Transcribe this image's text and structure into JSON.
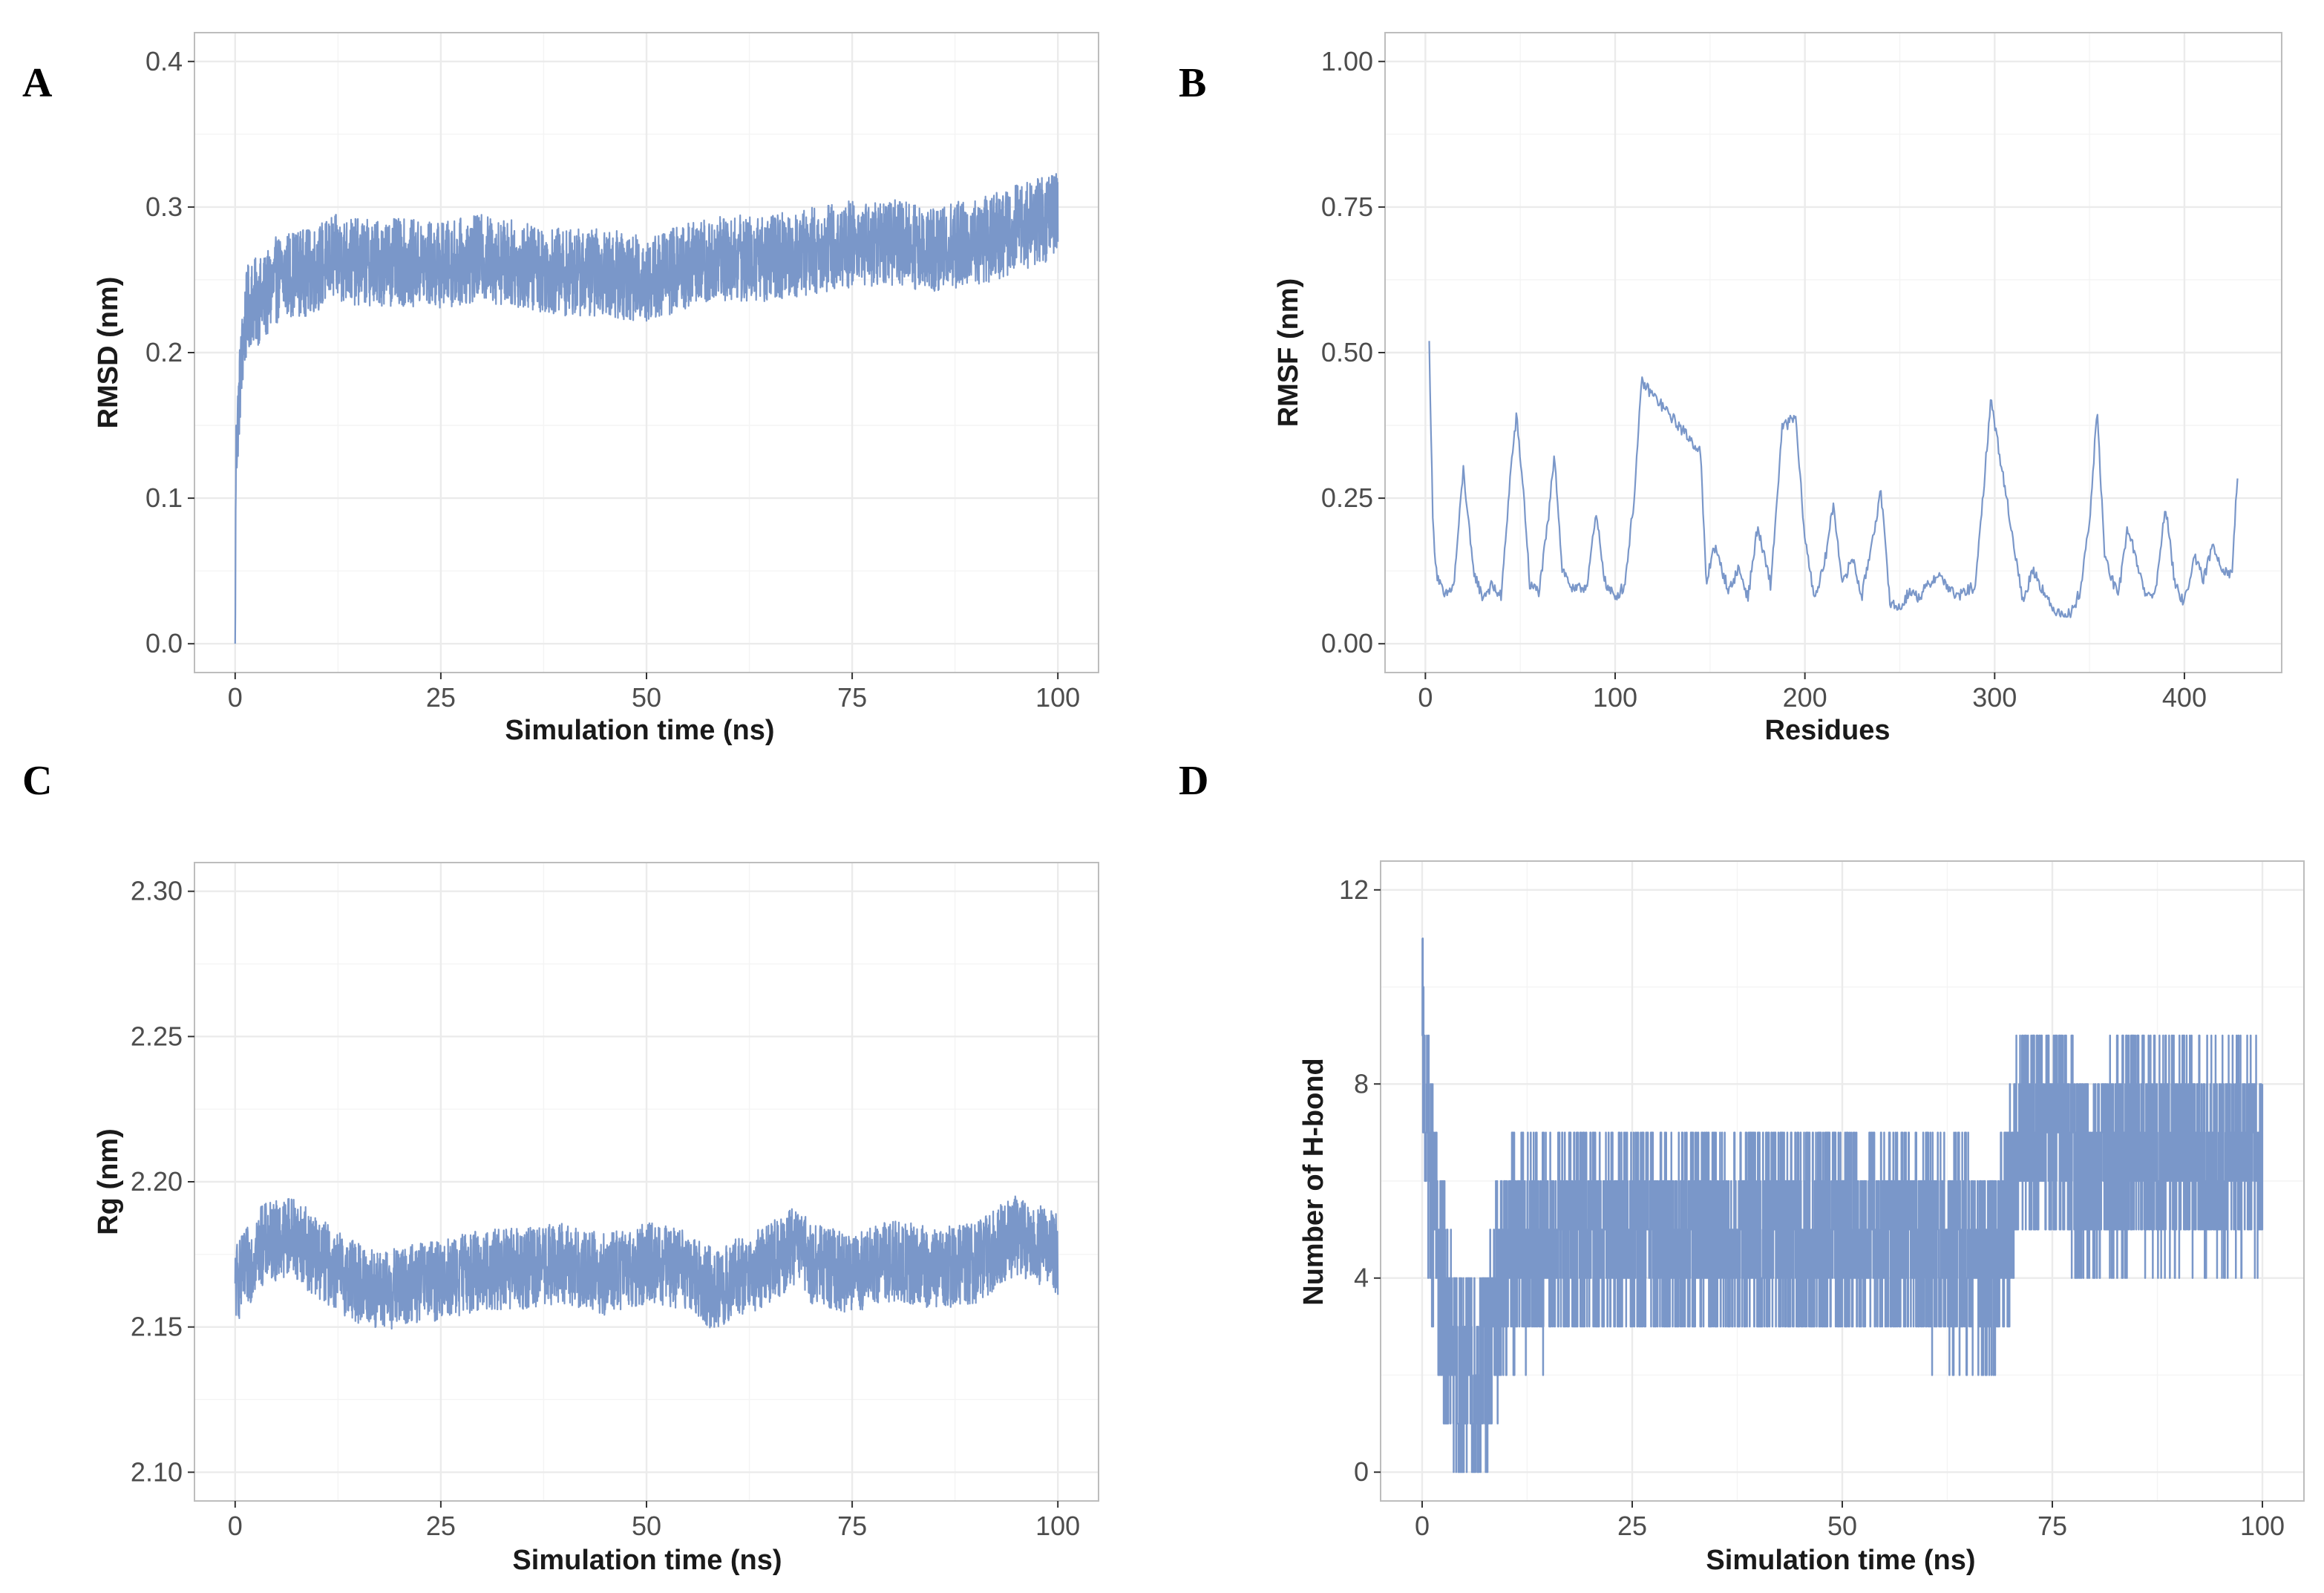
{
  "colors": {
    "series": "#7A97C9"
  },
  "chart_data": [
    {
      "panel": "A",
      "type": "line",
      "xlabel": "Simulation time (ns)",
      "ylabel": "RMSD (nm)",
      "xlim": [
        0,
        100
      ],
      "ylim": [
        0.0,
        0.4
      ],
      "xticks": [
        0,
        25,
        50,
        75,
        100
      ],
      "yticks": [
        0.0,
        0.1,
        0.2,
        0.3,
        0.4
      ],
      "ytick_labels": [
        "0.0",
        "0.1",
        "0.2",
        "0.3",
        "0.4"
      ],
      "grid": true,
      "series": [
        {
          "name": "RMSD",
          "noise": 0.03,
          "x": [
            0,
            0.1,
            0.3,
            0.6,
            1,
            1.5,
            2,
            3,
            4,
            5,
            7,
            9,
            12,
            15,
            20,
            25,
            30,
            35,
            40,
            45,
            50,
            55,
            60,
            65,
            70,
            75,
            80,
            85,
            90,
            95,
            100
          ],
          "y": [
            0.0,
            0.13,
            0.15,
            0.18,
            0.21,
            0.23,
            0.235,
            0.235,
            0.24,
            0.25,
            0.255,
            0.255,
            0.265,
            0.262,
            0.262,
            0.26,
            0.265,
            0.26,
            0.255,
            0.255,
            0.25,
            0.26,
            0.265,
            0.265,
            0.27,
            0.275,
            0.275,
            0.272,
            0.275,
            0.285,
            0.295
          ]
        }
      ]
    },
    {
      "panel": "B",
      "type": "line",
      "xlabel": "Residues",
      "ylabel": "RMSF (nm)",
      "xlim": [
        0,
        430
      ],
      "ylim": [
        0.0,
        1.0
      ],
      "xticks": [
        0,
        100,
        200,
        300,
        400
      ],
      "yticks": [
        0.0,
        0.25,
        0.5,
        0.75,
        1.0
      ],
      "ytick_labels": [
        "0.00",
        "0.25",
        "0.50",
        "0.75",
        "1.00"
      ],
      "grid": true,
      "series": [
        {
          "name": "RMSF",
          "noise": 0.02,
          "x": [
            2,
            4,
            6,
            10,
            15,
            20,
            25,
            30,
            35,
            40,
            45,
            48,
            52,
            55,
            60,
            65,
            68,
            72,
            78,
            85,
            90,
            95,
            100,
            105,
            110,
            114,
            145,
            148,
            152,
            160,
            165,
            170,
            175,
            182,
            188,
            195,
            200,
            205,
            210,
            215,
            220,
            225,
            230,
            235,
            240,
            245,
            250,
            255,
            260,
            270,
            280,
            290,
            298,
            315,
            320,
            330,
            340,
            345,
            350,
            354,
            358,
            365,
            370,
            380,
            385,
            390,
            395,
            400,
            405,
            410,
            415,
            420,
            425,
            428
          ],
          "y": [
            0.52,
            0.2,
            0.12,
            0.08,
            0.1,
            0.3,
            0.13,
            0.08,
            0.1,
            0.08,
            0.3,
            0.39,
            0.25,
            0.1,
            0.09,
            0.22,
            0.33,
            0.13,
            0.09,
            0.1,
            0.22,
            0.1,
            0.08,
            0.1,
            0.25,
            0.45,
            0.33,
            0.1,
            0.17,
            0.09,
            0.13,
            0.08,
            0.2,
            0.1,
            0.37,
            0.39,
            0.18,
            0.08,
            0.13,
            0.24,
            0.1,
            0.15,
            0.08,
            0.17,
            0.26,
            0.07,
            0.06,
            0.09,
            0.08,
            0.12,
            0.08,
            0.1,
            0.42,
            0.07,
            0.13,
            0.06,
            0.05,
            0.09,
            0.21,
            0.4,
            0.15,
            0.08,
            0.2,
            0.08,
            0.09,
            0.24,
            0.1,
            0.07,
            0.15,
            0.11,
            0.17,
            0.13,
            0.12,
            0.29
          ]
        }
      ]
    },
    {
      "panel": "C",
      "type": "line",
      "xlabel": "Simulation time (ns)",
      "ylabel": "Rg (nm)",
      "xlim": [
        0,
        100
      ],
      "ylim": [
        2.1,
        2.3
      ],
      "xticks": [
        0,
        25,
        50,
        75,
        100
      ],
      "yticks": [
        2.1,
        2.15,
        2.2,
        2.25,
        2.3
      ],
      "ytick_labels": [
        "2.10",
        "2.15",
        "2.20",
        "2.25",
        "2.30"
      ],
      "grid": true,
      "series": [
        {
          "name": "Rg",
          "noise": 0.014,
          "x": [
            0,
            1,
            3,
            5,
            7,
            9,
            12,
            15,
            18,
            22,
            25,
            30,
            35,
            40,
            45,
            50,
            55,
            58,
            62,
            65,
            68,
            70,
            75,
            80,
            85,
            90,
            95,
            98,
            100
          ],
          "y": [
            2.165,
            2.168,
            2.178,
            2.18,
            2.182,
            2.176,
            2.17,
            2.165,
            2.162,
            2.165,
            2.166,
            2.17,
            2.17,
            2.172,
            2.168,
            2.172,
            2.17,
            2.163,
            2.168,
            2.172,
            2.178,
            2.172,
            2.168,
            2.173,
            2.17,
            2.172,
            2.182,
            2.178,
            2.175
          ]
        }
      ]
    },
    {
      "panel": "D",
      "type": "line",
      "xlabel": "Simulation time (ns)",
      "ylabel": "Number of H-bond",
      "xlim": [
        0,
        100
      ],
      "ylim": [
        0,
        12
      ],
      "xticks": [
        0,
        25,
        50,
        75,
        100
      ],
      "yticks": [
        0,
        4,
        8,
        12
      ],
      "ytick_labels": [
        "0",
        "4",
        "8",
        "12"
      ],
      "grid": true,
      "series": [
        {
          "name": "H-bonds",
          "noise": 2.3,
          "step": true,
          "x": [
            0,
            0.5,
            1,
            2,
            3,
            4,
            5,
            6,
            7,
            8,
            9,
            10,
            15,
            20,
            25,
            30,
            35,
            40,
            45,
            50,
            55,
            60,
            65,
            68,
            70,
            71,
            72,
            75,
            78,
            80,
            85,
            90,
            95,
            100
          ],
          "y": [
            9,
            7,
            6,
            4,
            3,
            2,
            2,
            1.5,
            2,
            2.5,
            3.5,
            4.5,
            4.8,
            4.8,
            4.8,
            4.8,
            4.8,
            5,
            4.8,
            4.8,
            4.8,
            4.8,
            4.5,
            4.3,
            5.5,
            7,
            7.2,
            7,
            6.5,
            6,
            6.8,
            6.5,
            6.5,
            6.5
          ]
        }
      ]
    }
  ]
}
